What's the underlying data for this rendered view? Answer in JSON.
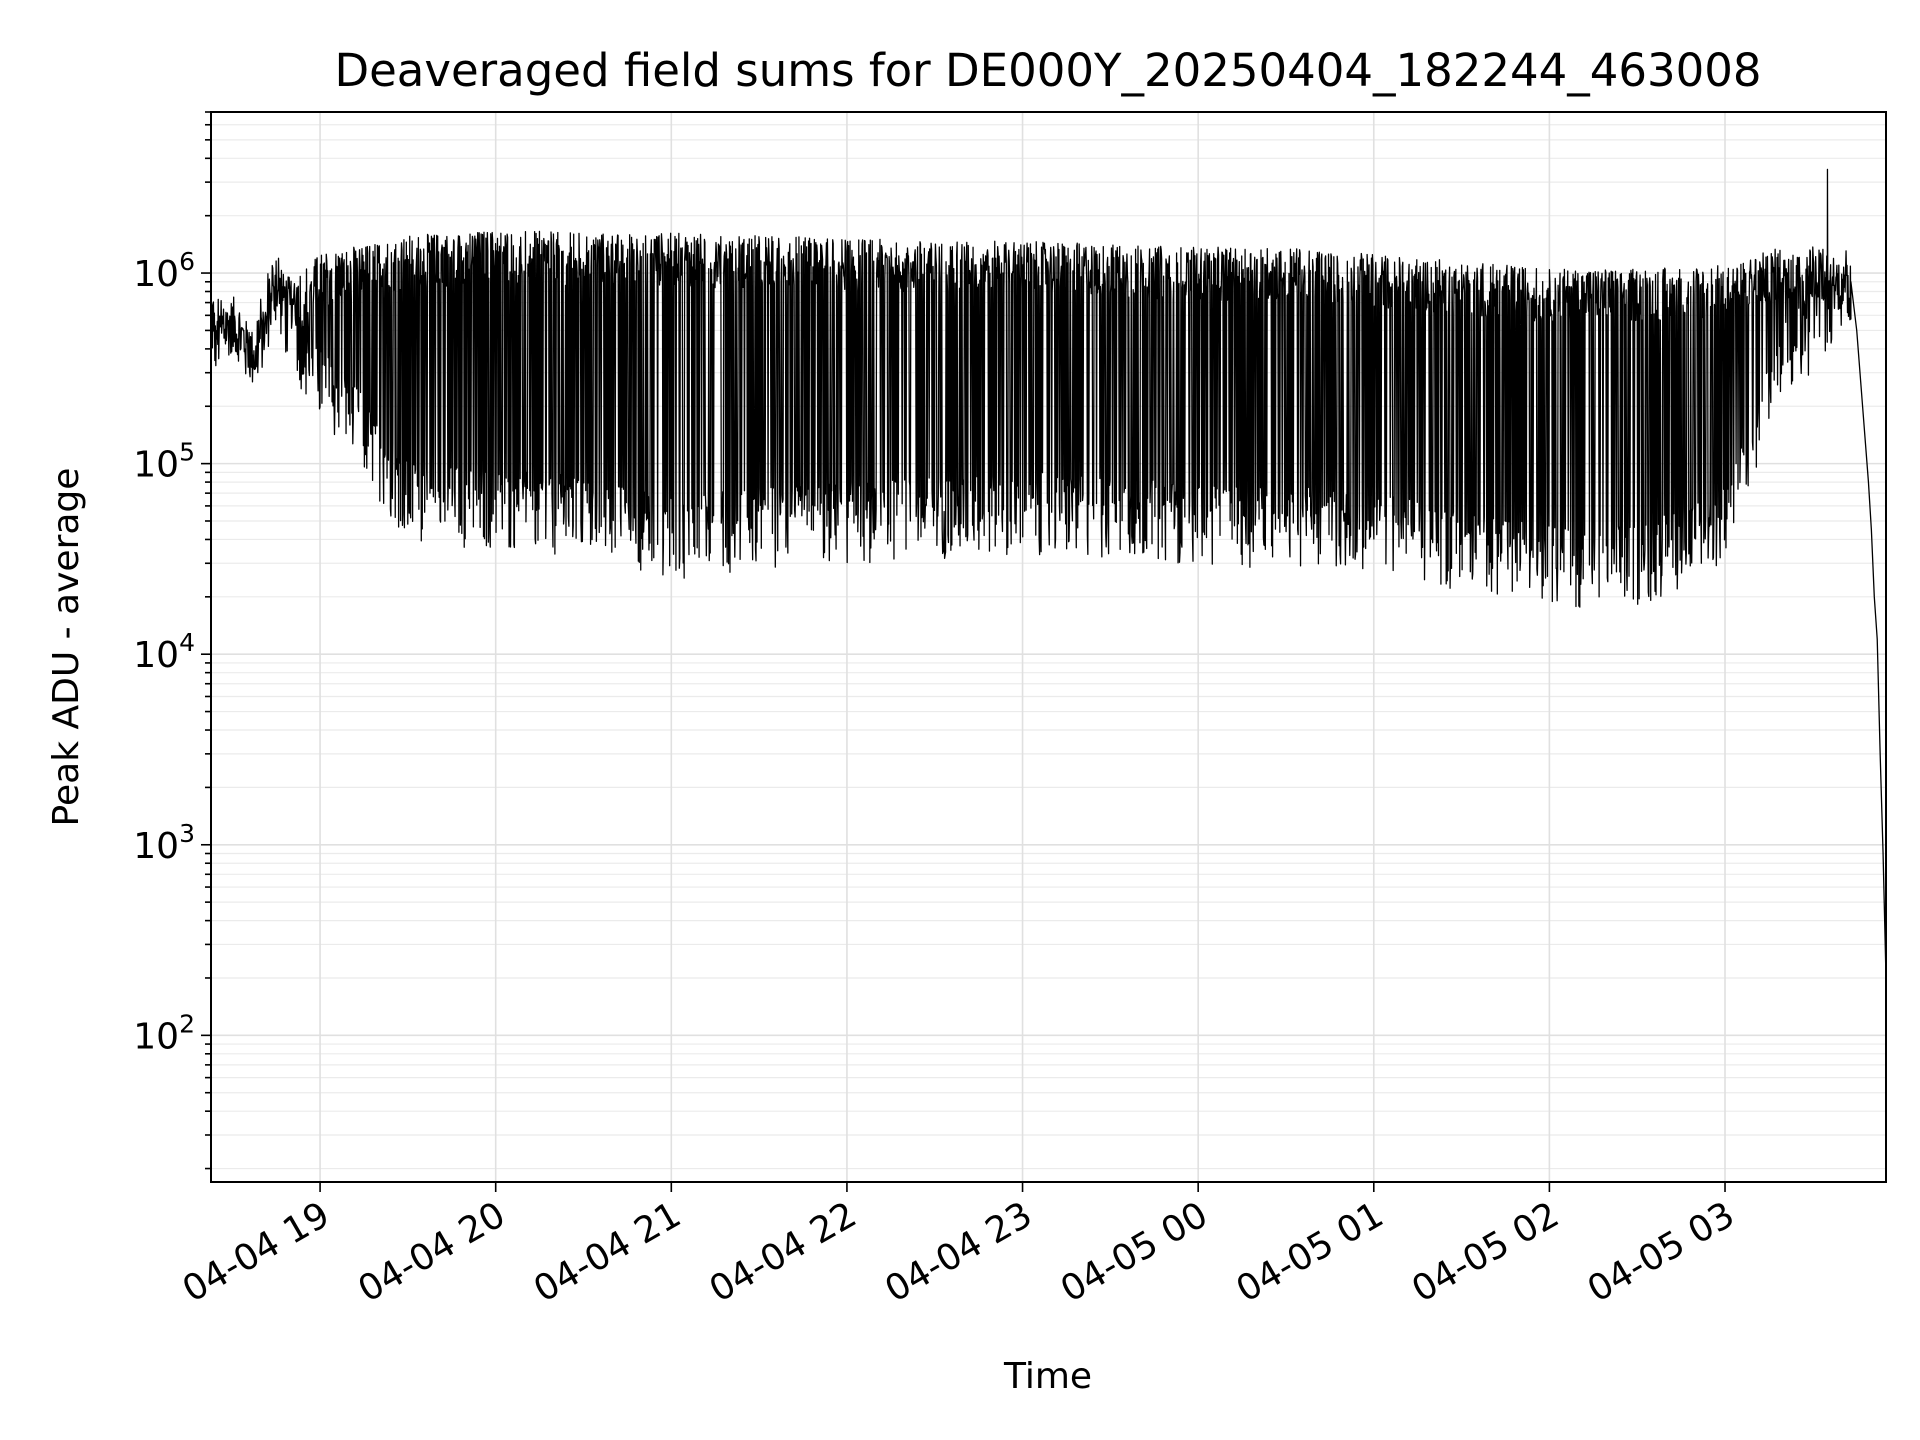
{
  "chart_data": {
    "type": "line",
    "title": "Deaveraged field sums for DE000Y_20250404_182244_463008",
    "xlabel": "Time",
    "ylabel": "Peak ADU - average",
    "yscale": "log",
    "ylim": [
      17,
      7000000
    ],
    "xlim": [
      "2025-04-04 18:22:44",
      "2025-04-05 03:55:00"
    ],
    "x_ticks": [
      {
        "value": "2025-04-04 19:00",
        "label": "04-04 19"
      },
      {
        "value": "2025-04-04 20:00",
        "label": "04-04 20"
      },
      {
        "value": "2025-04-04 21:00",
        "label": "04-04 21"
      },
      {
        "value": "2025-04-04 22:00",
        "label": "04-04 22"
      },
      {
        "value": "2025-04-04 23:00",
        "label": "04-04 23"
      },
      {
        "value": "2025-04-05 00:00",
        "label": "04-05 00"
      },
      {
        "value": "2025-04-05 01:00",
        "label": "04-05 01"
      },
      {
        "value": "2025-04-05 02:00",
        "label": "04-05 02"
      },
      {
        "value": "2025-04-05 03:00",
        "label": "04-05 03"
      }
    ],
    "y_ticks": [
      {
        "value": 100,
        "base": "10",
        "exp": "2"
      },
      {
        "value": 1000,
        "base": "10",
        "exp": "3"
      },
      {
        "value": 10000,
        "base": "10",
        "exp": "4"
      },
      {
        "value": 100000,
        "base": "10",
        "exp": "5"
      },
      {
        "value": 1000000,
        "base": "10",
        "exp": "6"
      }
    ],
    "grid": true,
    "line_color": "#000000",
    "series": [
      {
        "values_note": "envelope",
        "upper_envelope": {
          "x": [
            "2025-04-04 18:22:44",
            "2025-04-04 18:30",
            "2025-04-04 18:38",
            "2025-04-04 18:45",
            "2025-04-04 18:50",
            "2025-04-04 19:00",
            "2025-04-04 19:30",
            "2025-04-04 20:00",
            "2025-04-04 20:30",
            "2025-04-04 21:00",
            "2025-04-04 21:30",
            "2025-04-04 22:00",
            "2025-04-04 22:30",
            "2025-04-04 23:00",
            "2025-04-04 23:30",
            "2025-04-05 00:00",
            "2025-04-05 00:30",
            "2025-04-05 01:00",
            "2025-04-05 01:30",
            "2025-04-05 02:00",
            "2025-04-05 02:30",
            "2025-04-05 03:00",
            "2025-04-05 03:25",
            "2025-04-05 03:34",
            "2025-04-05 03:40",
            "2025-04-05 03:43"
          ],
          "y": [
            500000,
            700000,
            450000,
            1000000,
            900000,
            1200000,
            1500000,
            1600000,
            1550000,
            1550000,
            1500000,
            1450000,
            1400000,
            1400000,
            1350000,
            1300000,
            1300000,
            1200000,
            1100000,
            1000000,
            1000000,
            1050000,
            1400000,
            1300000,
            1100000,
            900000
          ]
        },
        "lower_envelope": {
          "x": [
            "2025-04-04 18:22:44",
            "2025-04-04 18:30",
            "2025-04-04 18:38",
            "2025-04-04 18:45",
            "2025-04-04 18:50",
            "2025-04-04 19:00",
            "2025-04-04 19:15",
            "2025-04-04 19:30",
            "2025-04-04 20:00",
            "2025-04-04 20:30",
            "2025-04-04 21:00",
            "2025-04-04 21:30",
            "2025-04-04 22:00",
            "2025-04-04 22:30",
            "2025-04-04 23:00",
            "2025-04-04 23:30",
            "2025-04-05 00:00",
            "2025-04-05 00:30",
            "2025-04-05 01:00",
            "2025-04-05 01:30",
            "2025-04-05 02:00",
            "2025-04-05 02:30",
            "2025-04-05 03:00",
            "2025-04-05 03:10",
            "2025-04-05 03:20",
            "2025-04-05 03:34",
            "2025-04-05 03:40"
          ],
          "y": [
            450000,
            400000,
            320000,
            800000,
            400000,
            220000,
            120000,
            55000,
            50000,
            45000,
            35000,
            40000,
            42000,
            45000,
            48000,
            45000,
            42000,
            40000,
            38000,
            30000,
            25000,
            25000,
            40000,
            100000,
            300000,
            500000,
            700000
          ]
        },
        "spike": {
          "x": "2025-04-05 03:35",
          "y": 3500000
        },
        "tail": {
          "x": [
            "2025-04-05 03:43",
            "2025-04-05 03:45",
            "2025-04-05 03:47",
            "2025-04-05 03:49",
            "2025-04-05 03:50",
            "2025-04-05 03:51",
            "2025-04-05 03:52",
            "2025-04-05 03:53",
            "2025-04-05 03:54",
            "2025-04-05 03:55"
          ],
          "y": [
            900000,
            500000,
            200000,
            80000,
            45000,
            20000,
            12000,
            3000,
            900,
            200
          ]
        }
      }
    ]
  }
}
